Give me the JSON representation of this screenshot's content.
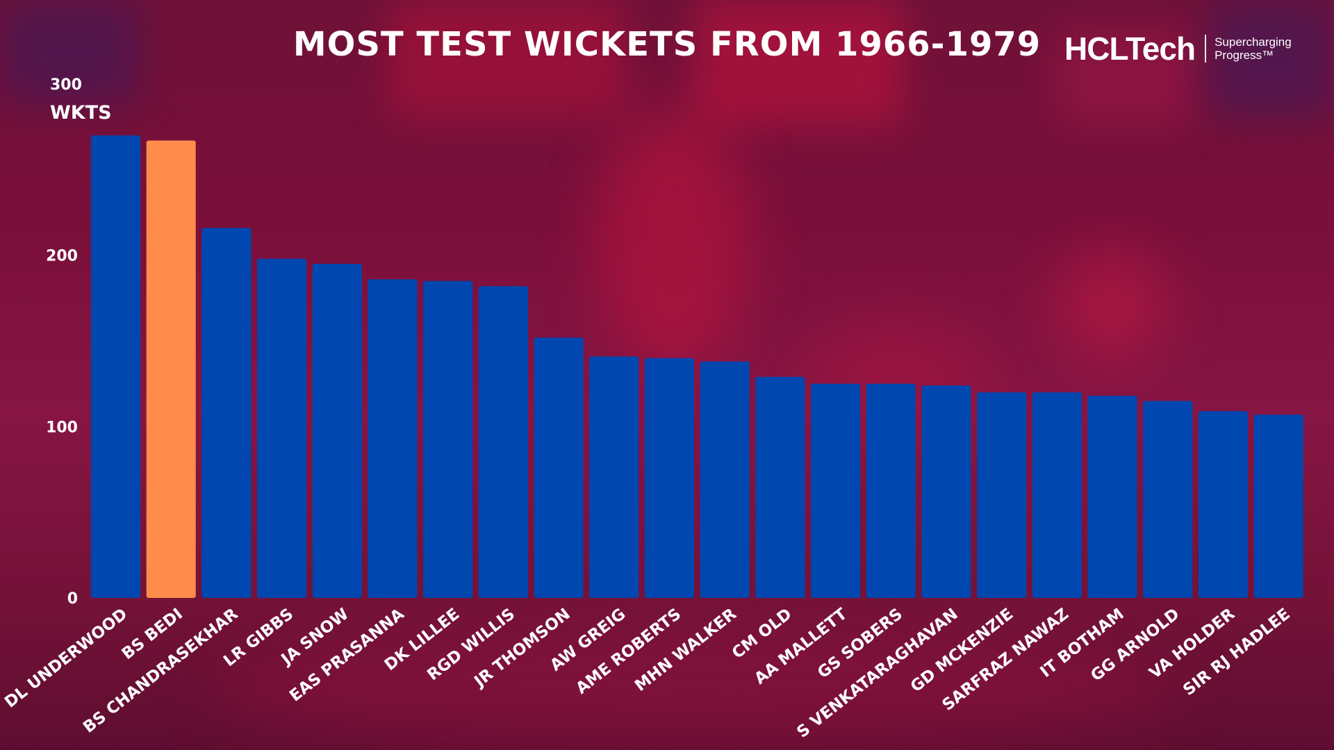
{
  "header": {
    "title": "MOST TEST WICKETS FROM  1966-1979"
  },
  "brand": {
    "name": "HCLTech",
    "tagline_line1": "Supercharging",
    "tagline_line2": "Progress™"
  },
  "colors": {
    "bar_default": "#0047b0",
    "bar_highlight": "#ff8c4a",
    "background": "#7a0f3a",
    "text": "#ffffff"
  },
  "chart_data": {
    "type": "bar",
    "title": "MOST TEST WICKETS FROM  1966-1979",
    "xlabel": "",
    "ylabel": "WKTS",
    "ylim": [
      0,
      300
    ],
    "yticks": [
      0,
      100,
      200,
      300
    ],
    "grid": false,
    "highlight_category": "BS BEDI",
    "categories": [
      "DL UNDERWOOD",
      "BS BEDI",
      "BS CHANDRASEKHAR",
      "LR GIBBS",
      "JA SNOW",
      "EAS PRASANNA",
      "DK LILLEE",
      "RGD WILLIS",
      "JR THOMSON",
      "AW GREIG",
      "AME ROBERTS",
      "MHN WALKER",
      "CM OLD",
      "AA MALLETT",
      "GS SOBERS",
      "S VENKATARAGHAVAN",
      "GD MCKENZIE",
      "SARFRAZ NAWAZ",
      "IT BOTHAM",
      "GG ARNOLD",
      "VA HOLDER",
      "SIR RJ HADLEE"
    ],
    "values": [
      270,
      267,
      216,
      198,
      195,
      186,
      185,
      182,
      152,
      141,
      140,
      138,
      129,
      125,
      125,
      124,
      120,
      120,
      118,
      115,
      109,
      107
    ]
  }
}
